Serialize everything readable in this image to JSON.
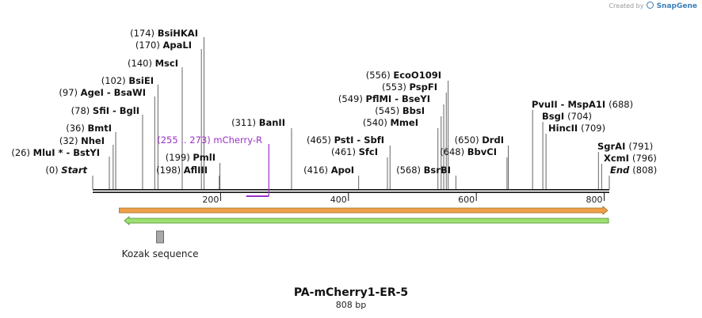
{
  "credit": {
    "prefix": "Created by",
    "brand": "SnapGene"
  },
  "map": {
    "title": "PA-mCherry1-ER-5",
    "length_label": "808 bp",
    "length_bp": 808,
    "ruler_ticks": [
      {
        "bp": 200,
        "label": "200"
      },
      {
        "bp": 400,
        "label": "400"
      },
      {
        "bp": 600,
        "label": "600"
      },
      {
        "bp": 800,
        "label": "800"
      }
    ],
    "sites": [
      {
        "id": "start",
        "pos": "(0)",
        "name": "Start",
        "bp": 0,
        "italic": true
      },
      {
        "id": "mlui",
        "pos": "(26)",
        "name": "MluI * - BstYI",
        "bp": 26
      },
      {
        "id": "nhei",
        "pos": "(32)",
        "name": "NheI",
        "bp": 32
      },
      {
        "id": "bmti",
        "pos": "(36)",
        "name": "BmtI",
        "bp": 36
      },
      {
        "id": "sfii",
        "pos": "(78)",
        "name": "SfiI - BglI",
        "bp": 78
      },
      {
        "id": "agei",
        "pos": "(97)",
        "name": "AgeI - BsaWI",
        "bp": 97
      },
      {
        "id": "bsiei",
        "pos": "(102)",
        "name": "BsiEI",
        "bp": 102
      },
      {
        "id": "msci",
        "pos": "(140)",
        "name": "MscI",
        "bp": 140
      },
      {
        "id": "apali",
        "pos": "(170)",
        "name": "ApaLI",
        "bp": 170
      },
      {
        "id": "bsihkai",
        "pos": "(174)",
        "name": "BsiHKAI",
        "bp": 174
      },
      {
        "id": "afliii",
        "pos": "(198)",
        "name": "AflIII",
        "bp": 198
      },
      {
        "id": "pmli",
        "pos": "(199)",
        "name": "PmlI",
        "bp": 199
      },
      {
        "id": "banii",
        "pos": "(311)",
        "name": "BanII",
        "bp": 311
      },
      {
        "id": "apoi",
        "pos": "(416)",
        "name": "ApoI",
        "bp": 416
      },
      {
        "id": "sfci",
        "pos": "(461)",
        "name": "SfcI",
        "bp": 461
      },
      {
        "id": "psti",
        "pos": "(465)",
        "name": "PstI - SbfI",
        "bp": 465
      },
      {
        "id": "mmei",
        "pos": "(540)",
        "name": "MmeI",
        "bp": 540
      },
      {
        "id": "bbsi",
        "pos": "(545)",
        "name": "BbsI",
        "bp": 545
      },
      {
        "id": "pflmi",
        "pos": "(549)",
        "name": "PflMI - BseYI",
        "bp": 549
      },
      {
        "id": "pspfi",
        "pos": "(553)",
        "name": "PspFI",
        "bp": 553
      },
      {
        "id": "ecoo109i",
        "pos": "(556)",
        "name": "EcoO109I",
        "bp": 556
      },
      {
        "id": "bsrbi",
        "pos": "(568)",
        "name": "BsrBI",
        "bp": 568
      },
      {
        "id": "bbvci",
        "pos": "(648)",
        "name": "BbvCI",
        "bp": 648
      },
      {
        "id": "drdi",
        "pos": "(650)",
        "name": "DrdI",
        "bp": 650
      },
      {
        "id": "pvuii",
        "pos": "(688)",
        "name": "PvuII - MspA1I",
        "bp": 688
      },
      {
        "id": "bsgi",
        "pos": "(704)",
        "name": "BsgI",
        "bp": 704
      },
      {
        "id": "hincii",
        "pos": "(709)",
        "name": "HincII",
        "bp": 709
      },
      {
        "id": "sgrai",
        "pos": "(791)",
        "name": "SgrAI",
        "bp": 791
      },
      {
        "id": "xcmi",
        "pos": "(796)",
        "name": "XcmI",
        "bp": 796
      },
      {
        "id": "end",
        "pos": "(808)",
        "name": "End",
        "bp": 808,
        "italic": true
      }
    ],
    "primer": {
      "range": "(255 .. 273)",
      "name": "mCherry-R",
      "start": 255,
      "end": 273,
      "color": "#9b30c8"
    },
    "features": [
      {
        "id": "orange-arrow",
        "start": 44,
        "end": 808,
        "direction": "forward",
        "color": "#f0a04a",
        "edge": "#9a6a20"
      },
      {
        "id": "green-arrow",
        "start": 52,
        "end": 808,
        "direction": "reverse",
        "color": "#9de070",
        "edge": "#4a8a2a"
      },
      {
        "id": "kozak",
        "name": "Kozak sequence",
        "start": 101,
        "end": 111,
        "color": "#a9a9a9"
      }
    ]
  }
}
